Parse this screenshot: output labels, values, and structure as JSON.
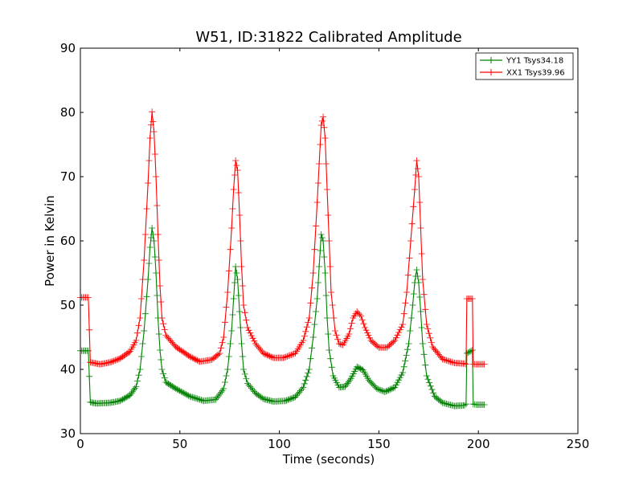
{
  "chart_data": {
    "type": "line",
    "title": "W51, ID:31822 Calibrated Amplitude",
    "xlabel": "Time (seconds)",
    "ylabel": "Power in Kelvin",
    "xlim": [
      0,
      250
    ],
    "ylim": [
      30,
      90
    ],
    "xticks": [
      "0",
      "50",
      "100",
      "150",
      "200",
      "250"
    ],
    "yticks": [
      "30",
      "40",
      "50",
      "60",
      "70",
      "80",
      "90"
    ],
    "grid": false,
    "legend_position": "top-right",
    "series": [
      {
        "name": "YY1 Tsys34.18",
        "color": "#008000",
        "marker": "+",
        "points": [
          [
            0,
            42.9
          ],
          [
            4,
            42.9
          ],
          [
            5,
            34.9
          ],
          [
            8,
            34.7
          ],
          [
            15,
            34.8
          ],
          [
            20,
            35.1
          ],
          [
            25,
            36
          ],
          [
            28,
            37.3
          ],
          [
            30,
            40
          ],
          [
            32,
            46
          ],
          [
            34,
            54
          ],
          [
            35,
            59
          ],
          [
            36,
            62
          ],
          [
            37,
            60
          ],
          [
            38,
            55
          ],
          [
            39,
            48
          ],
          [
            40,
            43
          ],
          [
            41,
            40
          ],
          [
            43,
            38
          ],
          [
            48,
            37
          ],
          [
            55,
            35.8
          ],
          [
            62,
            35.1
          ],
          [
            68,
            35.3
          ],
          [
            72,
            37
          ],
          [
            74,
            40
          ],
          [
            76,
            46
          ],
          [
            77,
            51
          ],
          [
            78,
            56
          ],
          [
            79,
            54
          ],
          [
            80,
            49
          ],
          [
            81,
            44
          ],
          [
            82,
            40
          ],
          [
            84,
            37.8
          ],
          [
            88,
            36.3
          ],
          [
            92,
            35.4
          ],
          [
            97,
            35
          ],
          [
            103,
            35.1
          ],
          [
            108,
            35.7
          ],
          [
            112,
            37.2
          ],
          [
            115,
            40
          ],
          [
            117,
            45
          ],
          [
            119,
            51
          ],
          [
            120,
            56
          ],
          [
            121,
            61
          ],
          [
            122,
            60
          ],
          [
            123,
            55
          ],
          [
            124,
            48
          ],
          [
            125,
            43
          ],
          [
            127,
            39
          ],
          [
            130,
            37.2
          ],
          [
            133,
            37.3
          ],
          [
            136,
            38.6
          ],
          [
            139,
            40.4
          ],
          [
            142,
            39.9
          ],
          [
            145,
            38.3
          ],
          [
            149,
            37
          ],
          [
            153,
            36.5
          ],
          [
            158,
            37.2
          ],
          [
            162,
            39.5
          ],
          [
            165,
            44
          ],
          [
            167,
            50
          ],
          [
            168,
            53.5
          ],
          [
            169,
            55.5
          ],
          [
            170,
            53.5
          ],
          [
            171,
            49
          ],
          [
            172,
            44
          ],
          [
            174,
            39
          ],
          [
            178,
            35.8
          ],
          [
            182,
            34.8
          ],
          [
            188,
            34.3
          ],
          [
            193,
            34.4
          ],
          [
            193.8,
            34.6
          ],
          [
            194.2,
            42.5
          ],
          [
            197,
            43
          ],
          [
            197.4,
            34.6
          ],
          [
            199,
            34.5
          ],
          [
            203,
            34.5
          ]
        ]
      },
      {
        "name": "XX1 Tsys39.96",
        "color": "#ff0000",
        "marker": "+",
        "points": [
          [
            0,
            51.2
          ],
          [
            4,
            51.2
          ],
          [
            5,
            41.1
          ],
          [
            10,
            40.8
          ],
          [
            15,
            41.1
          ],
          [
            20,
            41.7
          ],
          [
            25,
            42.8
          ],
          [
            28,
            44.5
          ],
          [
            30,
            48
          ],
          [
            32,
            57
          ],
          [
            34,
            69
          ],
          [
            35,
            76
          ],
          [
            36,
            80.1
          ],
          [
            37,
            77
          ],
          [
            38,
            70
          ],
          [
            39,
            61
          ],
          [
            40,
            53
          ],
          [
            41,
            48
          ],
          [
            43,
            45.3
          ],
          [
            48,
            43.5
          ],
          [
            55,
            42
          ],
          [
            60,
            41.2
          ],
          [
            66,
            41.5
          ],
          [
            70,
            42.5
          ],
          [
            72,
            45
          ],
          [
            74,
            52
          ],
          [
            76,
            62
          ],
          [
            77,
            68
          ],
          [
            78,
            72.5
          ],
          [
            79,
            71
          ],
          [
            80,
            64
          ],
          [
            81,
            56
          ],
          [
            82,
            50
          ],
          [
            84,
            46.5
          ],
          [
            88,
            44
          ],
          [
            92,
            42.5
          ],
          [
            97,
            41.8
          ],
          [
            102,
            41.8
          ],
          [
            108,
            42.5
          ],
          [
            112,
            44.5
          ],
          [
            115,
            48
          ],
          [
            117,
            55
          ],
          [
            119,
            66
          ],
          [
            120,
            72
          ],
          [
            121,
            78
          ],
          [
            122,
            79.3
          ],
          [
            123,
            76
          ],
          [
            124,
            68
          ],
          [
            125,
            60
          ],
          [
            126,
            52
          ],
          [
            128,
            46
          ],
          [
            130,
            44
          ],
          [
            132,
            43.8
          ],
          [
            135,
            45.5
          ],
          [
            137,
            48
          ],
          [
            139,
            49
          ],
          [
            141,
            48.3
          ],
          [
            143,
            46.5
          ],
          [
            146,
            44.5
          ],
          [
            150,
            43.4
          ],
          [
            154,
            43.4
          ],
          [
            158,
            44.5
          ],
          [
            162,
            47
          ],
          [
            164,
            52
          ],
          [
            166,
            60
          ],
          [
            168,
            68
          ],
          [
            169,
            72.5
          ],
          [
            170,
            70
          ],
          [
            171,
            62
          ],
          [
            172,
            54
          ],
          [
            174,
            47
          ],
          [
            177,
            43.5
          ],
          [
            182,
            41.6
          ],
          [
            188,
            41
          ],
          [
            193,
            40.9
          ],
          [
            193.8,
            40.8
          ],
          [
            194.2,
            51
          ],
          [
            197,
            51
          ],
          [
            197.4,
            40.8
          ],
          [
            199,
            40.8
          ],
          [
            203,
            40.8
          ]
        ]
      }
    ]
  }
}
